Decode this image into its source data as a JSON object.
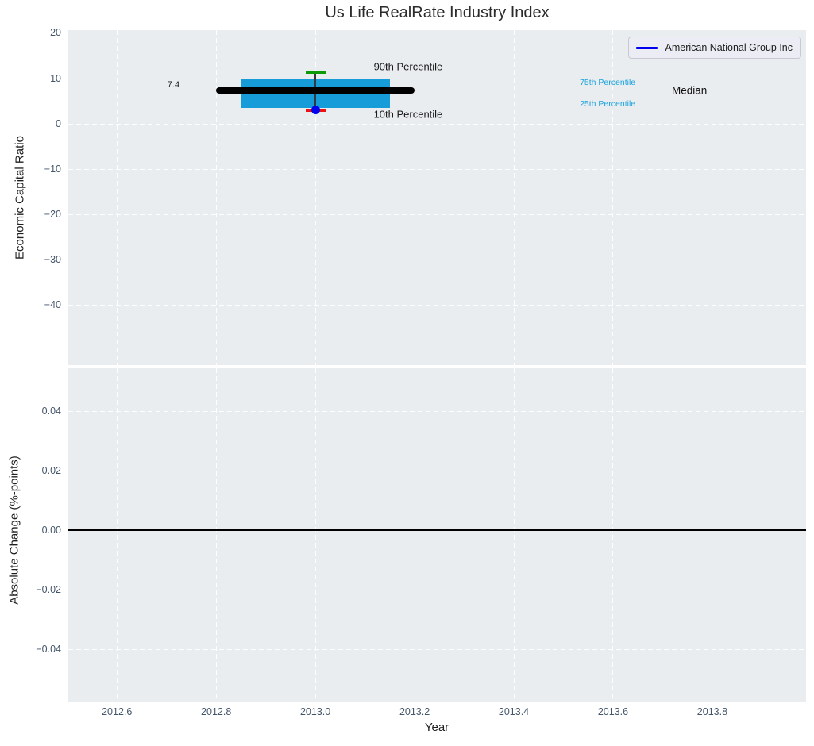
{
  "title": "Us Life RealRate Industry Index",
  "colors": {
    "panel_bg": "#e9edf0",
    "grid": "#ffffff",
    "tick_label": "#44566b",
    "box_fill": "#169cd8",
    "median_line": "#000000",
    "p90_cap": "#0a9a0a",
    "p10_cap": "#ee1111",
    "whisker": "#2f3a45",
    "company_marker": "#0000ee",
    "percentile_label": "#1ba3dc",
    "zero_line": "#000000"
  },
  "chart_data": [
    {
      "type": "box",
      "panel": "top",
      "title": "Us Life RealRate Industry Index",
      "ylabel": "Economic Capital Ratio",
      "xlim": [
        2012.502,
        2013.989
      ],
      "ylim": [
        -53.3,
        20.7
      ],
      "grid": true,
      "yticks": [
        20,
        10,
        0,
        -10,
        -20,
        -30,
        -40
      ],
      "ytick_labels": [
        "20",
        "10",
        "0",
        "−10",
        "−20",
        "−30",
        "−40"
      ],
      "xticks": [
        2012.6,
        2012.8,
        2013.0,
        2013.2,
        2013.4,
        2013.6,
        2013.8
      ],
      "box": {
        "x": 2013.0,
        "p90": 11.4,
        "p75": 10.0,
        "median": 7.4,
        "p25": 3.5,
        "p10": 3.0,
        "box_x_range": [
          2012.85,
          2013.15
        ],
        "median_x_range": [
          2012.8,
          2013.2
        ],
        "cap_x_range": [
          2012.98,
          2013.02
        ]
      },
      "series": [
        {
          "name": "American National Group Inc",
          "x": [
            2013.0
          ],
          "y": [
            3.1
          ],
          "color": "#0000ee",
          "marker": "circle"
        }
      ],
      "annotations": [
        {
          "text": "7.4",
          "x": 2012.714,
          "y": 8.6,
          "size": 11,
          "color": "#1a1a1a"
        },
        {
          "text": "90th Percentile",
          "x": 2013.187,
          "y": 12.6,
          "size": 13,
          "color": "#1a1a1a"
        },
        {
          "text": "10th Percentile",
          "x": 2013.187,
          "y": 2.1,
          "size": 13,
          "color": "#1a1a1a"
        },
        {
          "text": "75th Percentile",
          "x": 2013.589,
          "y": 9.2,
          "size": 10.5,
          "color": "#1ba3dc"
        },
        {
          "text": "25th Percentile",
          "x": 2013.589,
          "y": 4.4,
          "size": 10.5,
          "color": "#1ba3dc"
        },
        {
          "text": "Median",
          "x": 2013.754,
          "y": 7.4,
          "size": 13.5,
          "color": "#111111"
        }
      ],
      "legend": {
        "position": "upper right",
        "entries": [
          {
            "label": "American National Group Inc",
            "color": "#0000ee"
          }
        ]
      }
    },
    {
      "type": "line",
      "panel": "bottom",
      "ylabel": "Absolute Change (%-points)",
      "xlabel": "Year",
      "xlim": [
        2012.502,
        2013.989
      ],
      "ylim": [
        -0.0576,
        0.0544
      ],
      "grid": true,
      "yticks": [
        0.04,
        0.02,
        0.0,
        -0.02,
        -0.04
      ],
      "ytick_labels": [
        "0.04",
        "0.02",
        "0.00",
        "−0.02",
        "−0.04"
      ],
      "xticks": [
        2012.6,
        2012.8,
        2013.0,
        2013.2,
        2013.4,
        2013.6,
        2013.8
      ],
      "xtick_labels": [
        "2012.6",
        "2012.8",
        "2013.0",
        "2013.2",
        "2013.4",
        "2013.6",
        "2013.8"
      ],
      "zero_line_y": 0.0,
      "series": []
    }
  ]
}
